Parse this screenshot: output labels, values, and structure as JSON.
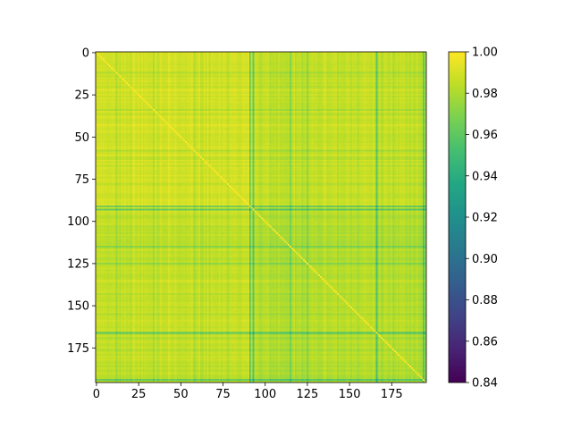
{
  "chart_data": {
    "type": "heatmap",
    "title": "",
    "xlabel": "",
    "ylabel": "",
    "grid": false,
    "matrix_size": 196,
    "xlim": [
      -0.5,
      195.5
    ],
    "ylim": [
      195.5,
      -0.5
    ],
    "y_axis_inverted": true,
    "x_ticks": [
      "0",
      "25",
      "50",
      "75",
      "100",
      "125",
      "150",
      "175"
    ],
    "y_ticks": [
      "0",
      "25",
      "50",
      "75",
      "100",
      "125",
      "150",
      "175"
    ],
    "colormap": "viridis",
    "colorbar": {
      "range": [
        0.84,
        1.0
      ],
      "ticks": [
        "0.84",
        "0.86",
        "0.88",
        "0.90",
        "0.92",
        "0.94",
        "0.96",
        "0.98",
        "1.00"
      ]
    },
    "diagonal_value": 1.0,
    "low_similarity_indices": [
      {
        "index": 12,
        "min_value": 0.975
      },
      {
        "index": 34,
        "min_value": 0.975
      },
      {
        "index": 58,
        "min_value": 0.975
      },
      {
        "index": 91,
        "min_value": 0.93
      },
      {
        "index": 93,
        "min_value": 0.935
      },
      {
        "index": 115,
        "min_value": 0.955
      },
      {
        "index": 125,
        "min_value": 0.96
      },
      {
        "index": 166,
        "min_value": 0.93
      },
      {
        "index": 194,
        "min_value": 0.935
      }
    ]
  }
}
